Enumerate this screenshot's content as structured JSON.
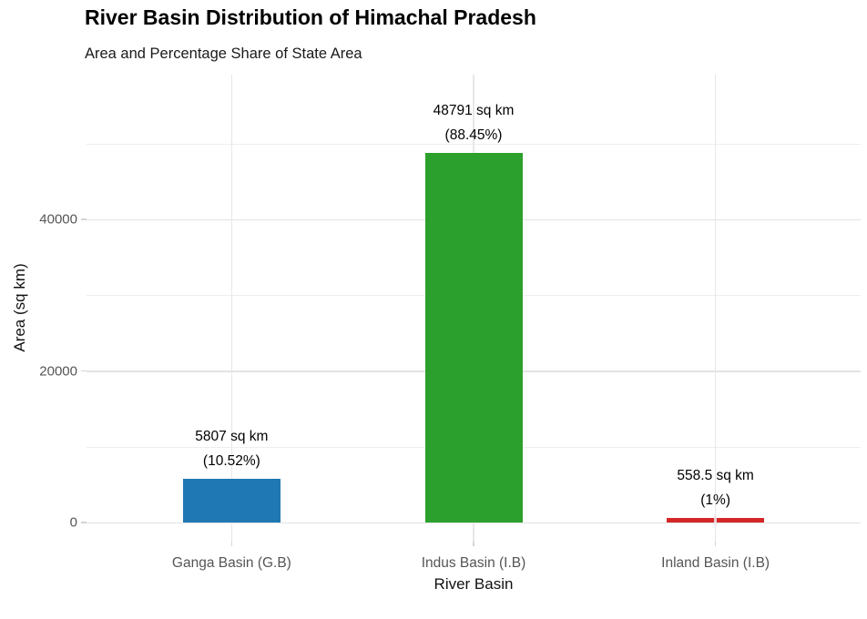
{
  "header": {
    "title": "River Basin Distribution of Himachal Pradesh",
    "subtitle": "Area and Percentage Share of State Area"
  },
  "chart_data": {
    "type": "bar",
    "title": "River Basin Distribution of Himachal Pradesh",
    "subtitle": "Area and Percentage Share of State Area",
    "xlabel": "River Basin",
    "ylabel": "Area (sq km)",
    "categories": [
      "Ganga Basin (G.B)",
      "Indus Basin (I.B)",
      "Inland Basin (I.B)"
    ],
    "values": [
      5807,
      48791,
      558.5
    ],
    "percentages": [
      10.52,
      88.45,
      1
    ],
    "bars": [
      {
        "category": "Ganga Basin (G.B)",
        "value": 5807,
        "area_label": "5807 sq km",
        "pct_label": "(10.52%)",
        "color": "#1f77b4"
      },
      {
        "category": "Indus Basin (I.B)",
        "value": 48791,
        "area_label": "48791 sq km",
        "pct_label": "(88.45%)",
        "color": "#2ca02c"
      },
      {
        "category": "Inland Basin (I.B)",
        "value": 558.5,
        "area_label": "558.5 sq km",
        "pct_label": "(1%)",
        "color": "#d62728"
      }
    ],
    "y_axis": {
      "ticks": [
        0,
        20000,
        40000
      ],
      "tick_labels": [
        "0",
        "20000",
        "40000"
      ],
      "minor_ticks": [
        10000,
        30000,
        50000
      ],
      "ylim": [
        0,
        59000
      ]
    },
    "grid": true,
    "legend": false,
    "background": "#ffffff"
  }
}
